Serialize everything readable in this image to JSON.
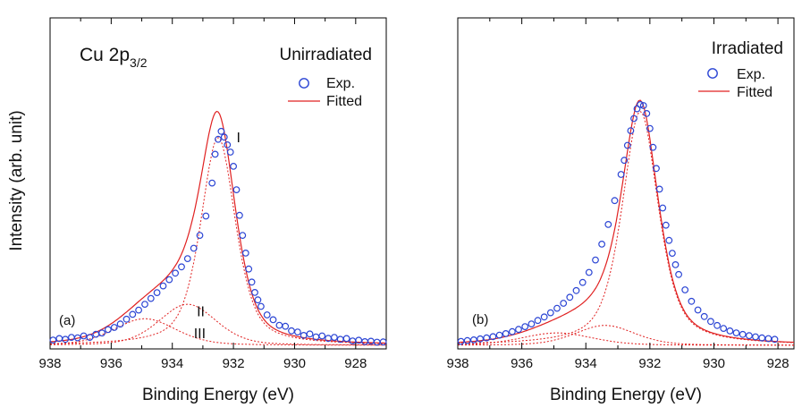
{
  "figure": {
    "ylabel": "Intensity (arb. unit)"
  },
  "chart_data": [
    {
      "type": "scatter",
      "panel_label": "(a)",
      "condition_label": "Unirradiated",
      "spectrum_label": "Cu 2p",
      "spectrum_sub": "3/2",
      "xlabel": "Binding Energy (eV)",
      "xlim": [
        938,
        927
      ],
      "ylim": [
        0,
        100
      ],
      "xticks": [
        938,
        936,
        934,
        932,
        930,
        928
      ],
      "legend": {
        "exp_label": "Exp.",
        "fit_label": "Fitted",
        "placement": "top-right"
      },
      "colors": {
        "exp": "#2b45d4",
        "fit": "#e02020"
      },
      "components": [
        {
          "label": "I",
          "center": 932.5,
          "fwhm": 1.35,
          "height": 86,
          "eta": 0.55
        },
        {
          "label": "II",
          "center": 933.5,
          "fwhm": 2.2,
          "height": 17,
          "eta": 0.3
        },
        {
          "label": "III",
          "center": 934.9,
          "fwhm": 2.4,
          "height": 11,
          "eta": 0.3
        }
      ],
      "component_label_anchor": [
        {
          "label": "I",
          "x": 931.9,
          "y": 84
        },
        {
          "label": "II",
          "x": 933.2,
          "y": 12
        },
        {
          "label": "III",
          "x": 933.3,
          "y": 3
        }
      ],
      "exp": [
        [
          937.9,
          2.2
        ],
        [
          937.7,
          2.8
        ],
        [
          937.5,
          2.5
        ],
        [
          937.3,
          3.3
        ],
        [
          937.1,
          3.1
        ],
        [
          936.9,
          3.9
        ],
        [
          936.7,
          3.3
        ],
        [
          936.5,
          4.6
        ],
        [
          936.3,
          5.1
        ],
        [
          936.1,
          6.5
        ],
        [
          935.9,
          7.4
        ],
        [
          935.7,
          8.8
        ],
        [
          935.5,
          10.8
        ],
        [
          935.3,
          12.8
        ],
        [
          935.1,
          14.6
        ],
        [
          934.9,
          17.0
        ],
        [
          934.7,
          19.4
        ],
        [
          934.5,
          21.8
        ],
        [
          934.3,
          24.6
        ],
        [
          934.1,
          27.2
        ],
        [
          933.9,
          29.9
        ],
        [
          933.7,
          32.5
        ],
        [
          933.5,
          35.9
        ],
        [
          933.3,
          40.2
        ],
        [
          933.1,
          45.5
        ],
        [
          932.9,
          53.5
        ],
        [
          932.7,
          67.2
        ],
        [
          932.6,
          79.1
        ],
        [
          932.5,
          85.3
        ],
        [
          932.4,
          88.6
        ],
        [
          932.3,
          86.2
        ],
        [
          932.2,
          83.0
        ],
        [
          932.1,
          80.0
        ],
        [
          932.0,
          74.1
        ],
        [
          931.9,
          64.4
        ],
        [
          931.8,
          53.8
        ],
        [
          931.7,
          45.5
        ],
        [
          931.6,
          38.2
        ],
        [
          931.5,
          31.6
        ],
        [
          931.4,
          26.2
        ],
        [
          931.3,
          21.9
        ],
        [
          931.2,
          18.8
        ],
        [
          931.1,
          16.1
        ],
        [
          930.9,
          12.6
        ],
        [
          930.7,
          10.6
        ],
        [
          930.5,
          8.3
        ],
        [
          930.3,
          7.9
        ],
        [
          930.1,
          6.0
        ],
        [
          929.9,
          5.5
        ],
        [
          929.7,
          4.1
        ],
        [
          929.5,
          4.7
        ],
        [
          929.3,
          3.5
        ],
        [
          929.1,
          3.9
        ],
        [
          928.9,
          2.9
        ],
        [
          928.7,
          3.3
        ],
        [
          928.5,
          2.5
        ],
        [
          928.3,
          2.8
        ],
        [
          928.1,
          1.8
        ],
        [
          927.9,
          2.1
        ],
        [
          927.7,
          1.5
        ],
        [
          927.5,
          1.7
        ],
        [
          927.3,
          1.3
        ],
        [
          927.1,
          1.4
        ]
      ]
    },
    {
      "type": "scatter",
      "panel_label": "(b)",
      "condition_label": "Irradiated",
      "xlabel": "Binding Energy (eV)",
      "xlim": [
        938,
        927.5
      ],
      "ylim": [
        0,
        100
      ],
      "xticks": [
        938,
        936,
        934,
        932,
        930,
        928
      ],
      "legend": {
        "exp_label": "Exp.",
        "fit_label": "Fitted",
        "placement": "top-right"
      },
      "colors": {
        "exp": "#2b45d4",
        "fit": "#e02020"
      },
      "components": [
        {
          "label": "",
          "center": 932.3,
          "fwhm": 1.35,
          "height": 94,
          "eta": 0.6
        },
        {
          "label": "",
          "center": 933.4,
          "fwhm": 2.2,
          "height": 8,
          "eta": 0.3
        },
        {
          "label": "",
          "center": 934.9,
          "fwhm": 2.6,
          "height": 5,
          "eta": 0.3
        }
      ],
      "exp": [
        [
          937.9,
          1.6
        ],
        [
          937.7,
          1.9
        ],
        [
          937.5,
          2.2
        ],
        [
          937.3,
          2.6
        ],
        [
          937.1,
          3.0
        ],
        [
          936.9,
          3.5
        ],
        [
          936.7,
          4.1
        ],
        [
          936.5,
          4.7
        ],
        [
          936.3,
          5.5
        ],
        [
          936.1,
          6.4
        ],
        [
          935.9,
          7.5
        ],
        [
          935.7,
          8.6
        ],
        [
          935.5,
          10.0
        ],
        [
          935.3,
          11.4
        ],
        [
          935.1,
          13.1
        ],
        [
          934.9,
          14.9
        ],
        [
          934.7,
          16.9
        ],
        [
          934.5,
          19.3
        ],
        [
          934.3,
          22.0
        ],
        [
          934.1,
          25.3
        ],
        [
          933.9,
          29.3
        ],
        [
          933.7,
          34.3
        ],
        [
          933.5,
          40.7
        ],
        [
          933.3,
          48.6
        ],
        [
          933.1,
          58.2
        ],
        [
          932.9,
          68.7
        ],
        [
          932.8,
          74.4
        ],
        [
          932.7,
          80.4
        ],
        [
          932.6,
          86.3
        ],
        [
          932.5,
          91.2
        ],
        [
          932.4,
          95.1
        ],
        [
          932.3,
          96.8
        ],
        [
          932.2,
          96.4
        ],
        [
          932.1,
          93.2
        ],
        [
          932.0,
          87.2
        ],
        [
          931.9,
          79.6
        ],
        [
          931.8,
          71.1
        ],
        [
          931.7,
          62.8
        ],
        [
          931.6,
          55.2
        ],
        [
          931.5,
          48.3
        ],
        [
          931.4,
          42.2
        ],
        [
          931.3,
          37.0
        ],
        [
          931.2,
          32.4
        ],
        [
          931.1,
          28.5
        ],
        [
          930.9,
          22.3
        ],
        [
          930.7,
          17.7
        ],
        [
          930.5,
          14.2
        ],
        [
          930.3,
          11.6
        ],
        [
          930.1,
          9.6
        ],
        [
          929.9,
          8.0
        ],
        [
          929.7,
          6.8
        ],
        [
          929.5,
          5.8
        ],
        [
          929.3,
          5.0
        ],
        [
          929.1,
          4.4
        ],
        [
          928.9,
          3.9
        ],
        [
          928.7,
          3.4
        ],
        [
          928.5,
          3.0
        ],
        [
          928.3,
          2.7
        ],
        [
          928.1,
          2.4
        ]
      ]
    }
  ]
}
